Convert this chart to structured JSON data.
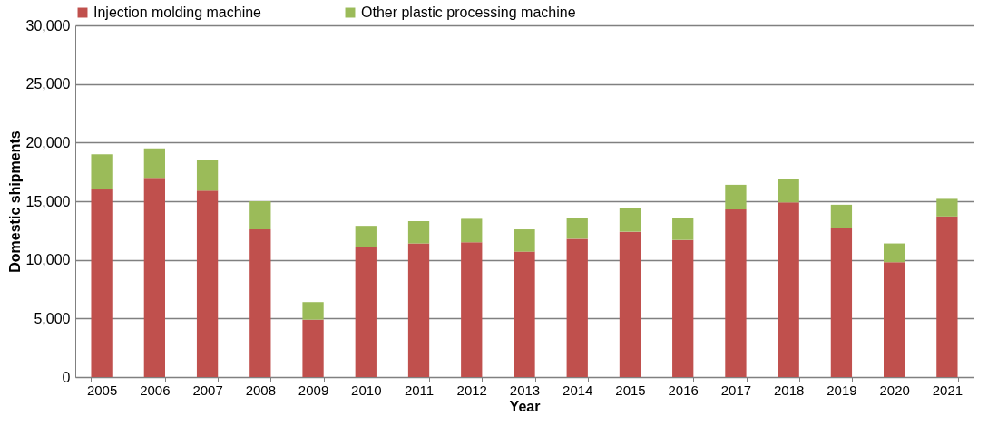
{
  "chart_data": {
    "type": "bar",
    "stacked": true,
    "xlabel": "Year",
    "ylabel": "Domestic shipments",
    "categories": [
      "2005",
      "2006",
      "2007",
      "2008",
      "2009",
      "2010",
      "2011",
      "2012",
      "2013",
      "2014",
      "2015",
      "2016",
      "2017",
      "2018",
      "2019",
      "2020",
      "2021"
    ],
    "series": [
      {
        "name": "Injection molding machine",
        "color": "#c0504d",
        "values": [
          16000,
          17000,
          15900,
          12600,
          4900,
          11100,
          11400,
          11500,
          10700,
          11800,
          12400,
          11700,
          14300,
          14900,
          12700,
          9800,
          13700
        ]
      },
      {
        "name": "Other plastic processing machine",
        "color": "#9bbb59",
        "values": [
          3000,
          2500,
          2600,
          2400,
          1500,
          1800,
          1900,
          2000,
          1900,
          1800,
          2000,
          1900,
          2100,
          2000,
          2000,
          1600,
          1500
        ]
      }
    ],
    "ylim": [
      0,
      30000
    ],
    "yticks": [
      {
        "value": 0,
        "label": "0"
      },
      {
        "value": 5000,
        "label": "5,000"
      },
      {
        "value": 10000,
        "label": "10,000"
      },
      {
        "value": 15000,
        "label": "15,000"
      },
      {
        "value": 20000,
        "label": "20,000"
      },
      {
        "value": 25000,
        "label": "25,000"
      },
      {
        "value": 30000,
        "label": "30,000"
      }
    ],
    "grid": "y",
    "legend": "top"
  }
}
